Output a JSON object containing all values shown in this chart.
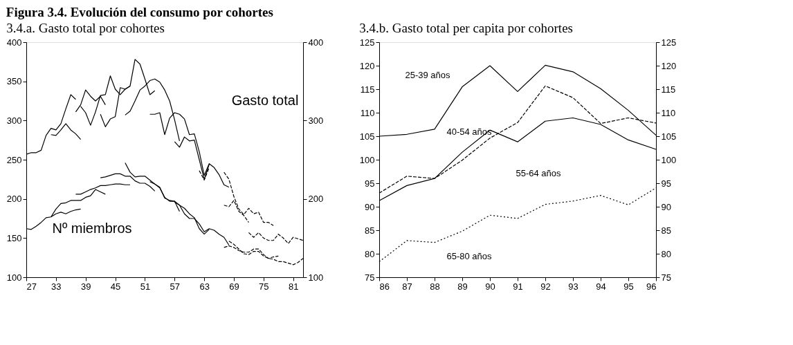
{
  "chart_data": [
    {
      "type": "line",
      "title": "Figura 3.4. Evolución del consumo por cohortes",
      "subtitle": "3.4.a. Gasto total por cohortes",
      "xlim": [
        27,
        83
      ],
      "xticks": [
        27,
        33,
        39,
        45,
        51,
        57,
        63,
        69,
        75,
        81
      ],
      "ylim": [
        100,
        400
      ],
      "yticks": [
        100,
        150,
        200,
        250,
        300,
        350,
        400
      ],
      "y2lim": [
        100,
        400
      ],
      "y2ticks": [
        100,
        200,
        300,
        400
      ],
      "annotations": [
        "Gasto total",
        "Nº miembros"
      ],
      "series": [
        {
          "color": "#000000",
          "line_style": "solid",
          "x": [
            27,
            28,
            29,
            30,
            31,
            32,
            33,
            34,
            35,
            36,
            37
          ],
          "values": [
            257,
            259,
            259,
            262,
            281,
            290,
            288,
            296,
            315,
            333,
            327
          ]
        },
        {
          "color": "#000000",
          "line_style": "solid",
          "x": [
            32,
            33,
            34,
            35,
            36,
            37,
            38
          ],
          "values": [
            282,
            281,
            288,
            296,
            288,
            283,
            276
          ]
        },
        {
          "color": "#000000",
          "line_style": "solid",
          "x": [
            37,
            38,
            39,
            40,
            41,
            42,
            43
          ],
          "values": [
            311,
            320,
            339,
            331,
            325,
            331,
            320
          ]
        },
        {
          "color": "#000000",
          "line_style": "solid",
          "x": [
            38,
            39,
            40,
            41,
            42,
            43,
            44,
            45,
            46,
            47,
            48
          ],
          "values": [
            318,
            310,
            294,
            311,
            332,
            333,
            357,
            340,
            333,
            340,
            344
          ]
        },
        {
          "color": "#000000",
          "line_style": "solid",
          "x": [
            42,
            43,
            44,
            45,
            46,
            47,
            48,
            49,
            50,
            51,
            52,
            53
          ],
          "values": [
            308,
            292,
            302,
            305,
            342,
            340,
            344,
            378,
            372,
            353,
            333,
            338
          ]
        },
        {
          "color": "#000000",
          "line_style": "solid",
          "x": [
            47,
            48,
            49,
            50,
            51,
            52,
            53,
            54,
            55,
            56,
            57,
            58
          ],
          "values": [
            307,
            312,
            325,
            339,
            344,
            351,
            353,
            349,
            339,
            325,
            301,
            274
          ]
        },
        {
          "color": "#000000",
          "line_style": "solid",
          "x": [
            52,
            53,
            54,
            55,
            56,
            57,
            58,
            59,
            60,
            61,
            62,
            63,
            64,
            65,
            66,
            67,
            68
          ],
          "values": [
            308,
            308,
            310,
            282,
            303,
            310,
            308,
            302,
            282,
            283,
            260,
            230,
            245,
            240,
            231,
            218,
            215
          ]
        },
        {
          "color": "#000000",
          "line_style": "solid",
          "x": [
            57,
            58,
            59,
            60,
            61,
            62,
            63,
            64
          ],
          "values": [
            273,
            266,
            279,
            274,
            275,
            250,
            225,
            244
          ]
        },
        {
          "color": "#000000",
          "line_style": "dashed",
          "x": [
            62,
            63,
            64
          ],
          "values": [
            236,
            224,
            240
          ]
        },
        {
          "color": "#000000",
          "line_style": "dashed",
          "x": [
            67,
            68,
            69,
            70,
            71,
            72,
            73,
            74,
            75,
            76,
            77
          ],
          "values": [
            234,
            225,
            203,
            187,
            180,
            188,
            181,
            183,
            170,
            170,
            166
          ]
        },
        {
          "color": "#000000",
          "line_style": "dashed",
          "x": [
            67,
            68,
            69,
            70,
            71,
            72
          ],
          "values": [
            192,
            190,
            198,
            184,
            179,
            170
          ]
        },
        {
          "color": "#000000",
          "line_style": "dashed",
          "x": [
            72,
            73,
            74,
            75,
            76,
            77,
            78,
            79,
            80,
            81,
            82,
            83
          ],
          "values": [
            157,
            151,
            157,
            150,
            147,
            147,
            155,
            150,
            143,
            151,
            149,
            147
          ]
        },
        {
          "color": "#000000",
          "line_style": "solid",
          "x": [
            27,
            28,
            29,
            30,
            31,
            32,
            33,
            34,
            35,
            36,
            37,
            38
          ],
          "values": [
            162,
            161,
            165,
            170,
            176,
            177,
            181,
            183,
            181,
            184,
            186,
            187
          ]
        },
        {
          "color": "#000000",
          "line_style": "solid",
          "x": [
            32,
            33,
            34,
            35,
            36,
            37,
            38,
            39,
            40,
            41,
            42,
            43
          ],
          "values": [
            177,
            187,
            194,
            195,
            198,
            198,
            198,
            202,
            204,
            212,
            209,
            206
          ]
        },
        {
          "color": "#000000",
          "line_style": "solid",
          "x": [
            37,
            38,
            39,
            40,
            41,
            42,
            43,
            44,
            45,
            46,
            47,
            48
          ],
          "values": [
            206,
            206,
            209,
            212,
            214,
            217,
            217,
            218,
            219,
            219,
            218,
            218
          ]
        },
        {
          "color": "#000000",
          "line_style": "solid",
          "x": [
            42,
            43,
            44,
            45,
            46,
            47,
            48,
            49,
            50,
            51,
            52,
            53
          ],
          "values": [
            227,
            228,
            230,
            232,
            232,
            229,
            229,
            223,
            220,
            220,
            216,
            210
          ]
        },
        {
          "color": "#000000",
          "line_style": "solid",
          "x": [
            47,
            48,
            49,
            50,
            51,
            52,
            53,
            54,
            55,
            56,
            57,
            58
          ],
          "values": [
            246,
            234,
            228,
            229,
            229,
            224,
            219,
            214,
            202,
            197,
            197,
            184
          ]
        },
        {
          "color": "#000000",
          "line_style": "solid",
          "x": [
            52,
            53,
            54,
            55,
            56,
            57,
            58,
            59,
            60,
            61,
            62,
            63,
            64
          ],
          "values": [
            222,
            219,
            215,
            201,
            198,
            197,
            192,
            188,
            181,
            176,
            162,
            155,
            161
          ]
        },
        {
          "color": "#000000",
          "line_style": "solid",
          "x": [
            57,
            58,
            59,
            60,
            61,
            62,
            63,
            64,
            65,
            66,
            67,
            68
          ],
          "values": [
            196,
            192,
            181,
            175,
            175,
            168,
            158,
            162,
            160,
            155,
            151,
            141
          ]
        },
        {
          "color": "#000000",
          "line_style": "dashed",
          "x": [
            67,
            68,
            69,
            70,
            71,
            72,
            73,
            74,
            75,
            76,
            77,
            78
          ],
          "values": [
            138,
            140,
            138,
            134,
            132,
            132,
            136,
            136,
            129,
            124,
            126,
            127
          ]
        },
        {
          "color": "#000000",
          "line_style": "dashed",
          "x": [
            68,
            69,
            70,
            71,
            72,
            73,
            74,
            75,
            76,
            77,
            78,
            79,
            80,
            81,
            82,
            83
          ],
          "values": [
            146,
            142,
            136,
            130,
            129,
            133,
            133,
            127,
            124,
            123,
            120,
            120,
            118,
            116,
            119,
            124
          ]
        }
      ]
    },
    {
      "type": "line",
      "title": "3.4.b. Gasto total per capita por cohortes",
      "x": [
        86,
        87,
        88,
        89,
        90,
        91,
        92,
        93,
        94,
        95,
        96
      ],
      "xlim": [
        86,
        96
      ],
      "xticks": [
        86,
        87,
        88,
        89,
        90,
        91,
        92,
        93,
        94,
        95,
        96
      ],
      "ylim": [
        75,
        125
      ],
      "yticks": [
        75,
        80,
        85,
        90,
        95,
        100,
        105,
        110,
        115,
        120,
        125
      ],
      "y2lim": [
        75,
        125
      ],
      "y2ticks": [
        75,
        80,
        85,
        90,
        95,
        100,
        105,
        110,
        115,
        120,
        125
      ],
      "series": [
        {
          "name": "25-39 años",
          "color": "#000000",
          "line_style": "solid",
          "values": [
            105.0,
            105.4,
            106.5,
            115.5,
            120.0,
            114.5,
            120.1,
            118.7,
            115.1,
            110.5,
            105.2
          ]
        },
        {
          "name": "40-54 años",
          "color": "#000000",
          "line_style": "dashed",
          "values": [
            92.9,
            96.5,
            96.0,
            99.9,
            104.6,
            107.9,
            115.7,
            113.2,
            107.7,
            108.9,
            107.8
          ]
        },
        {
          "name": "55-64 años",
          "color": "#000000",
          "line_style": "solid",
          "values": [
            91.3,
            94.5,
            96.0,
            101.6,
            106.3,
            103.8,
            108.2,
            108.9,
            107.5,
            104.2,
            102.2
          ]
        },
        {
          "name": "65-80 años",
          "color": "#000000",
          "line_style": "dotted",
          "values": [
            78.3,
            82.8,
            82.4,
            84.8,
            88.2,
            87.5,
            90.5,
            91.2,
            92.4,
            90.4,
            94.0
          ]
        }
      ]
    }
  ]
}
